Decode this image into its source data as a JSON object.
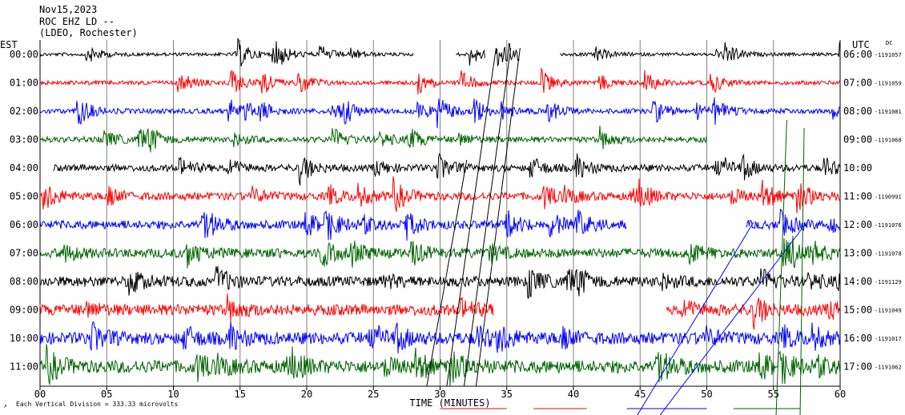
{
  "header": {
    "date": "Nov15,2023",
    "station": "ROC EHZ LD --",
    "network": "(LDEO, Rochester)"
  },
  "left_zone": "EST",
  "right_zone": "UTC",
  "dc_label": "DC",
  "footer": {
    "scale_note": "Each Vertical Division =  333.33 microvolts",
    "corner_mark": "↗"
  },
  "chart_data": {
    "type": "line",
    "xlabel": "TIME (MINUTES)",
    "xlim": [
      0,
      60
    ],
    "x_ticks": [
      "00",
      "05",
      "10",
      "15",
      "20",
      "25",
      "30",
      "35",
      "40",
      "45",
      "50",
      "55",
      "60"
    ],
    "grid": true,
    "trace_colors": [
      "#000000",
      "#ff0000",
      "#0000ff",
      "#006400"
    ],
    "rows": [
      {
        "est": "00:00",
        "utc": "06:00",
        "dc": "1191057",
        "gaps": [
          [
            28,
            31.2
          ],
          [
            33.4,
            34.2
          ],
          [
            36,
            39
          ]
        ]
      },
      {
        "est": "01:00",
        "utc": "07:00",
        "dc": "1191059",
        "gaps": []
      },
      {
        "est": "02:00",
        "utc": "08:00",
        "dc": "1191081",
        "gaps": []
      },
      {
        "est": "03:00",
        "utc": "09:00",
        "dc": "1191068",
        "gaps": [
          [
            50,
            60
          ]
        ]
      },
      {
        "est": "04:00",
        "utc": "10:00",
        "dc": "",
        "gaps": [
          [
            0,
            1
          ]
        ]
      },
      {
        "est": "05:00",
        "utc": "11:00",
        "dc": "1190991",
        "gaps": []
      },
      {
        "est": "06:00",
        "utc": "12:00",
        "dc": "1191076",
        "gaps": [
          [
            44,
            53
          ]
        ]
      },
      {
        "est": "07:00",
        "utc": "13:00",
        "dc": "1191078",
        "gaps": []
      },
      {
        "est": "08:00",
        "utc": "14:00",
        "dc": "1191129",
        "gaps": []
      },
      {
        "est": "09:00",
        "utc": "15:00",
        "dc": "1191049",
        "gaps": [
          [
            34,
            47
          ]
        ]
      },
      {
        "est": "10:00",
        "utc": "16:00",
        "dc": "1191017",
        "gaps": []
      },
      {
        "est": "11:00",
        "utc": "17:00",
        "dc": "1191062",
        "gaps": []
      }
    ]
  }
}
